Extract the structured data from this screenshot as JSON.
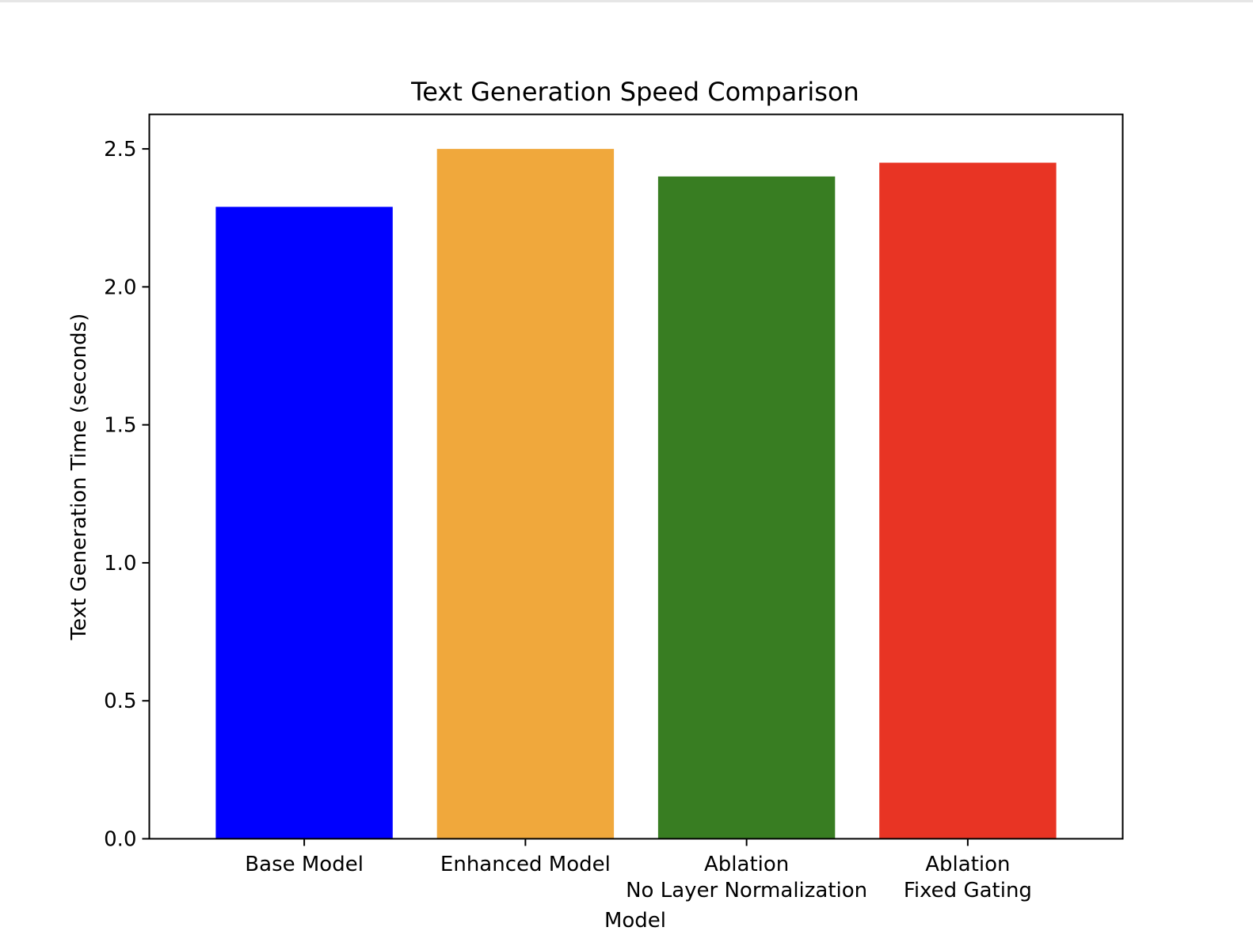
{
  "chart_data": {
    "type": "bar",
    "title": "Text Generation Speed Comparison",
    "xlabel": "Model",
    "ylabel": "Text Generation Time (seconds)",
    "categories": [
      [
        "Base Model"
      ],
      [
        "Enhanced Model"
      ],
      [
        "Ablation",
        "No Layer Normalization"
      ],
      [
        "Ablation",
        "Fixed Gating"
      ]
    ],
    "values": [
      2.29,
      2.5,
      2.4,
      2.45
    ],
    "colors": [
      "#0000ff",
      "#f0a83c",
      "#387d22",
      "#e83424"
    ],
    "ylim": [
      0,
      2.625
    ],
    "yticks": [
      "0.0",
      "0.5",
      "1.0",
      "1.5",
      "2.0",
      "2.5"
    ],
    "grid": false,
    "legend": false
  }
}
